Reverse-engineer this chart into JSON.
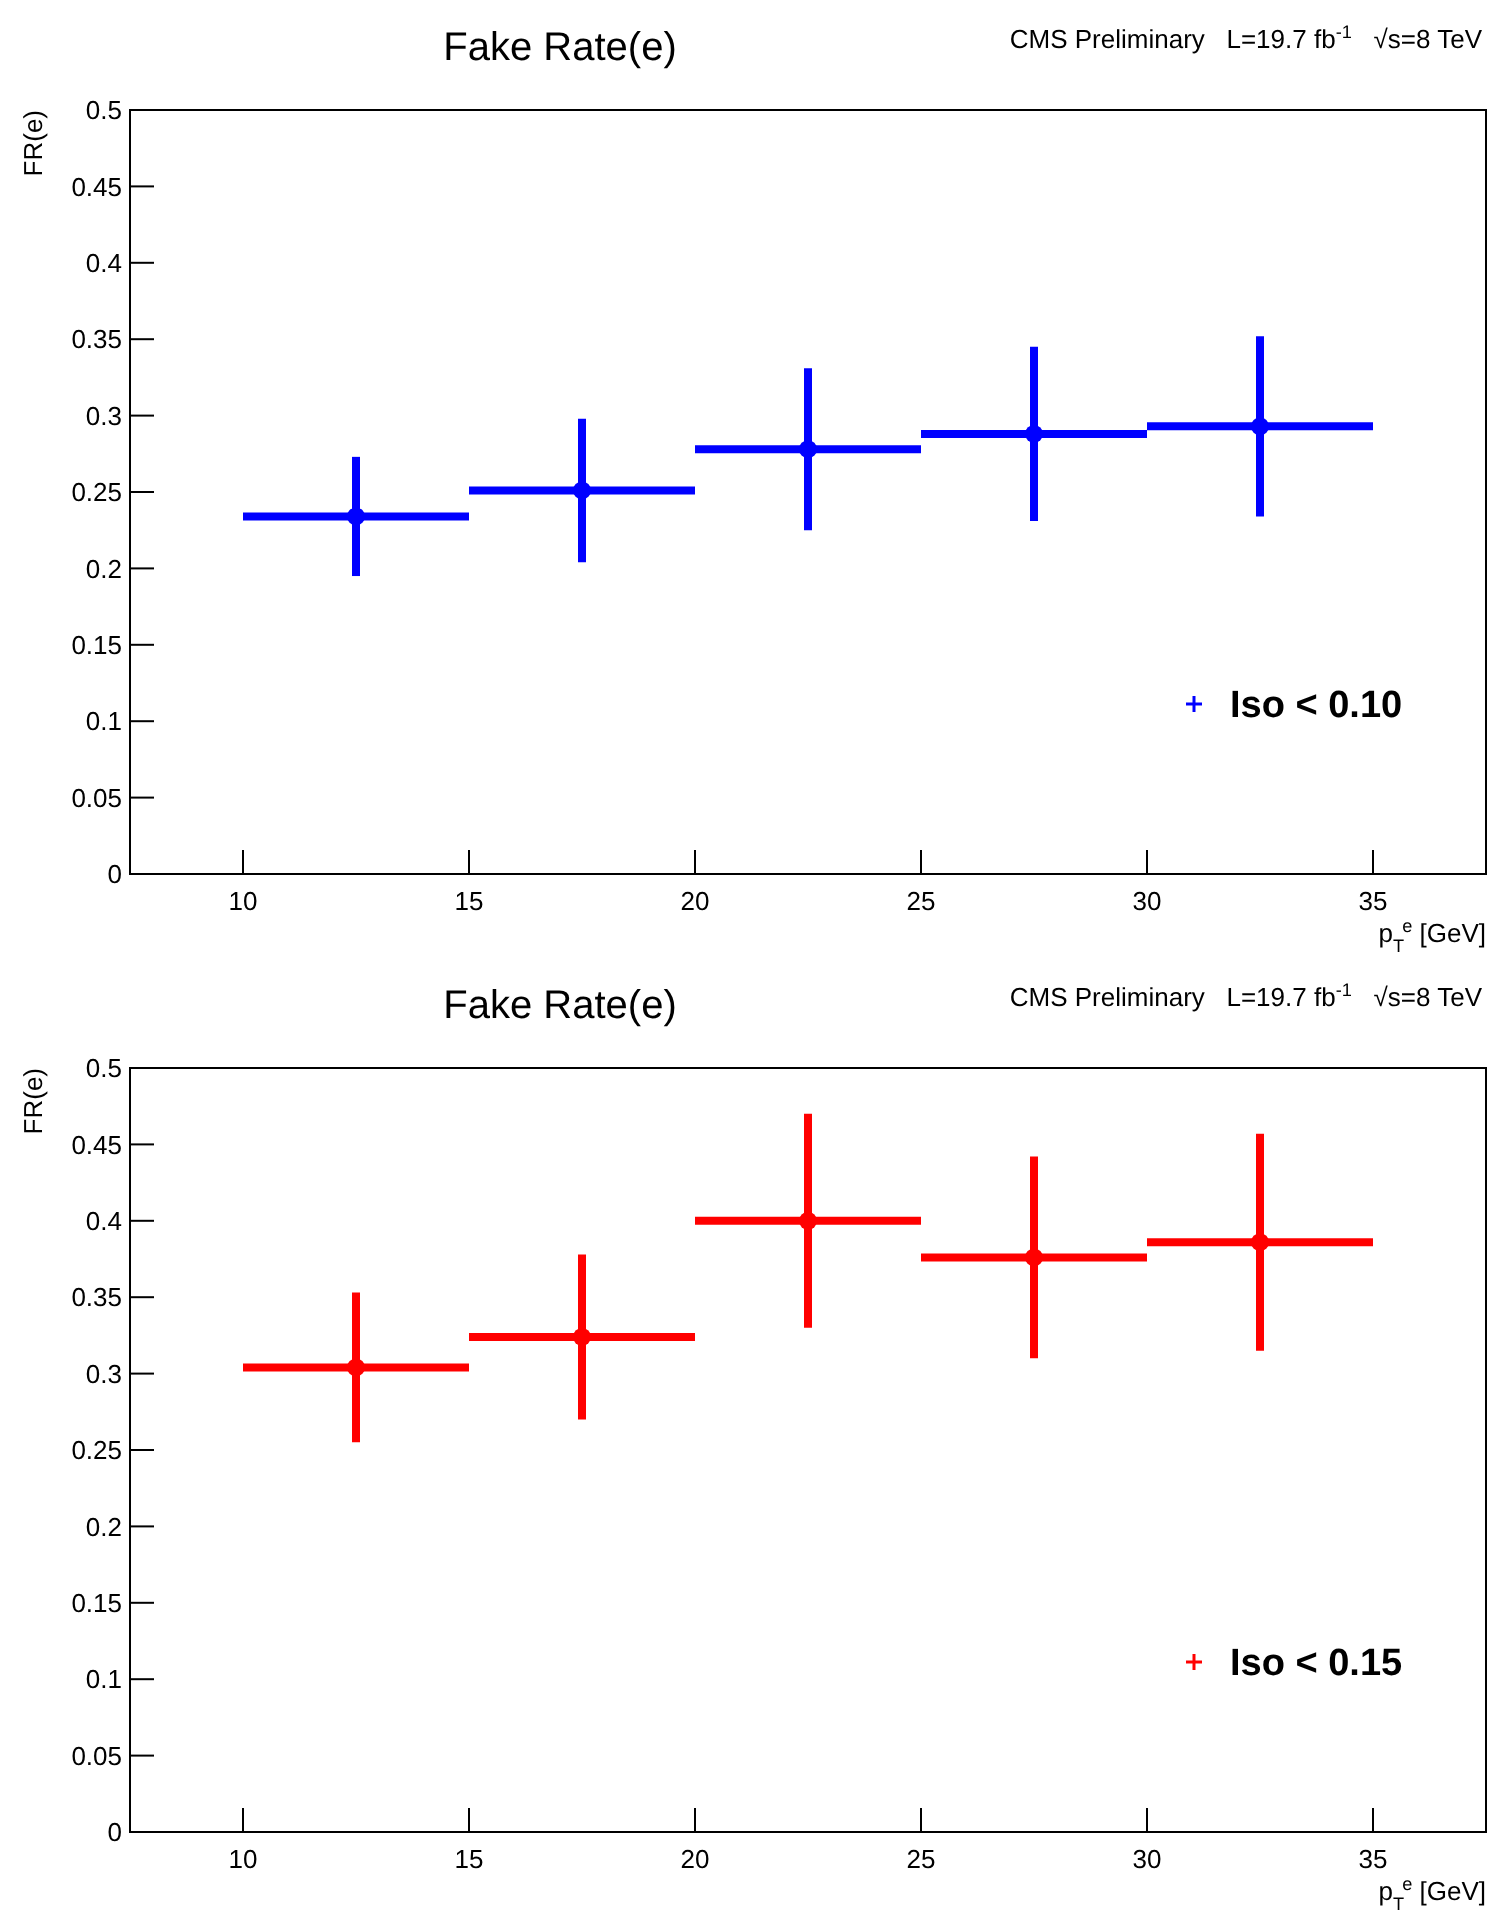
{
  "chart_data": [
    {
      "type": "scatter",
      "title": "Fake Rate(e)",
      "annotations": [
        "CMS Preliminary   L=19.7 fb$^{-1}$   √s=8 TeV"
      ],
      "xlabel": "p$_{T}$$^{e}$ [GeV]",
      "ylabel": "FR(e)",
      "x": [
        12.5,
        17.5,
        22.5,
        27.5,
        32.5
      ],
      "series": [
        {
          "name": "Iso < 0.10",
          "color": "#0000ff",
          "values": [
            0.234,
            0.251,
            0.278,
            0.288,
            0.293
          ],
          "errors": [
            0.039,
            0.047,
            0.053,
            0.057,
            0.059
          ],
          "xerrors": [
            2.5,
            2.5,
            2.5,
            2.5,
            2.5
          ]
        }
      ],
      "xlim": [
        7.5,
        37.5
      ],
      "xticks": [
        10,
        15,
        20,
        25,
        30,
        35
      ],
      "ylim": [
        0,
        0.5
      ],
      "yticks": [
        0,
        0.05,
        0.1,
        0.15,
        0.2,
        0.25,
        0.3,
        0.35,
        0.4,
        0.45,
        0.5
      ],
      "legend": "bottom right"
    },
    {
      "type": "scatter",
      "title": "Fake Rate(e)",
      "annotations": [
        "CMS Preliminary   L=19.7 fb$^{-1}$   √s=8 TeV"
      ],
      "xlabel": "p$_{T}$$^{e}$ [GeV]",
      "ylabel": "FR(e)",
      "x": [
        12.5,
        17.5,
        22.5,
        27.5,
        32.5
      ],
      "series": [
        {
          "name": "Iso < 0.15",
          "color": "#ff0000",
          "values": [
            0.304,
            0.324,
            0.4,
            0.376,
            0.386
          ],
          "errors": [
            0.049,
            0.054,
            0.07,
            0.066,
            0.071
          ],
          "xerrors": [
            2.5,
            2.5,
            2.5,
            2.5,
            2.5
          ]
        }
      ],
      "xlim": [
        7.5,
        37.5
      ],
      "xticks": [
        10,
        15,
        20,
        25,
        30,
        35
      ],
      "ylim": [
        0,
        0.5
      ],
      "yticks": [
        0,
        0.05,
        0.1,
        0.15,
        0.2,
        0.25,
        0.3,
        0.35,
        0.4,
        0.45,
        0.5
      ],
      "legend": "bottom right"
    }
  ]
}
